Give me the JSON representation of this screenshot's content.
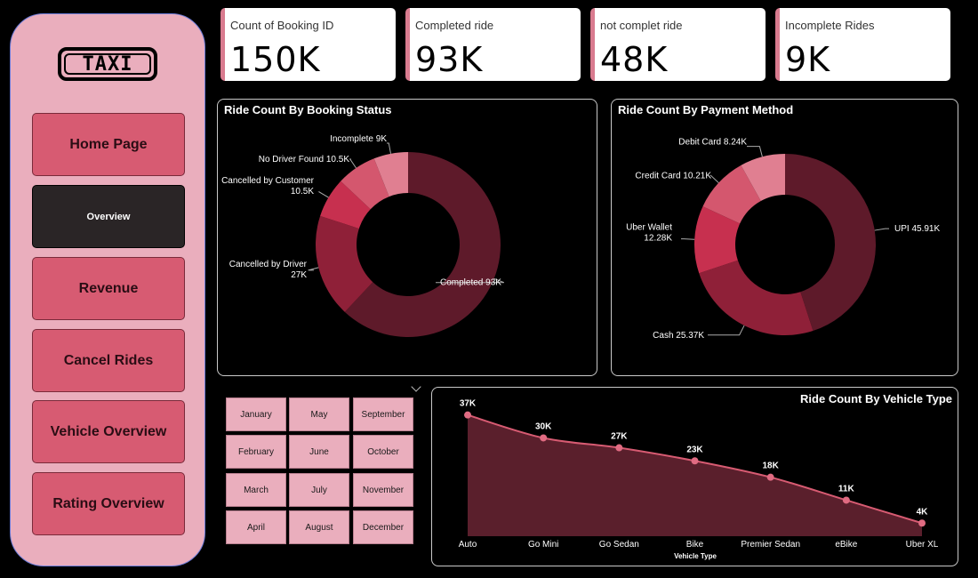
{
  "logo": {
    "text": "TAXI"
  },
  "nav": [
    {
      "label": "Home Page",
      "active": false
    },
    {
      "label": "Overview",
      "active": true
    },
    {
      "label": "Revenue",
      "active": false
    },
    {
      "label": "Cancel Rides",
      "active": false
    },
    {
      "label": "Vehicle Overview",
      "active": false
    },
    {
      "label": "Rating Overview",
      "active": false
    }
  ],
  "kpis": [
    {
      "label": "Count of Booking ID",
      "value": "150K"
    },
    {
      "label": "Completed ride",
      "value": "93K"
    },
    {
      "label": "not complet ride",
      "value": "48K"
    },
    {
      "label": "Incomplete Rides",
      "value": "9K"
    }
  ],
  "months": [
    "January",
    "May",
    "September",
    "February",
    "June",
    "October",
    "March",
    "July",
    "November",
    "April",
    "August",
    "December"
  ],
  "colors": {
    "accent": "#d75b72",
    "sidebar": "#eaaebd",
    "dark": "#5e1a2a"
  },
  "chart_data": [
    {
      "type": "pie",
      "title": "Ride Count By Booking Status",
      "slices": [
        {
          "name": "Completed",
          "value": 93,
          "label": "Completed 93K",
          "color": "#5e1a2a"
        },
        {
          "name": "Cancelled by Driver",
          "value": 27,
          "label": "Cancelled by Driver",
          "label2": "27K",
          "color": "#8f2038"
        },
        {
          "name": "Cancelled by Customer",
          "value": 10.5,
          "label": "Cancelled by Customer",
          "label2": "10.5K",
          "color": "#c7304f"
        },
        {
          "name": "No Driver Found",
          "value": 10.5,
          "label": "No Driver Found 10.5K",
          "color": "#d4576e"
        },
        {
          "name": "Incomplete",
          "value": 9,
          "label": "Incomplete 9K",
          "color": "#e07f91"
        }
      ]
    },
    {
      "type": "pie",
      "title": "Ride Count By Payment Method",
      "slices": [
        {
          "name": "UPI",
          "value": 45.91,
          "label": "UPI 45.91K",
          "color": "#5e1a2a"
        },
        {
          "name": "Cash",
          "value": 25.37,
          "label": "Cash 25.37K",
          "color": "#8f2038"
        },
        {
          "name": "Uber Wallet",
          "value": 12.28,
          "label": "Uber Wallet",
          "label2": "12.28K",
          "color": "#c7304f"
        },
        {
          "name": "Credit Card",
          "value": 10.21,
          "label": "Credit Card 10.21K",
          "color": "#d4576e"
        },
        {
          "name": "Debit Card",
          "value": 8.24,
          "label": "Debit Card 8.24K",
          "color": "#e07f91"
        }
      ]
    },
    {
      "type": "area",
      "title": "Ride Count By Vehicle Type",
      "xlabel": "Vehicle Type",
      "categories": [
        "Auto",
        "Go Mini",
        "Go Sedan",
        "Bike",
        "Premier Sedan",
        "eBike",
        "Uber XL"
      ],
      "values": [
        37,
        30,
        27,
        23,
        18,
        11,
        4
      ],
      "labels": [
        "37K",
        "30K",
        "27K",
        "23K",
        "18K",
        "11K",
        "4K"
      ],
      "ylim": [
        0,
        38
      ]
    }
  ]
}
